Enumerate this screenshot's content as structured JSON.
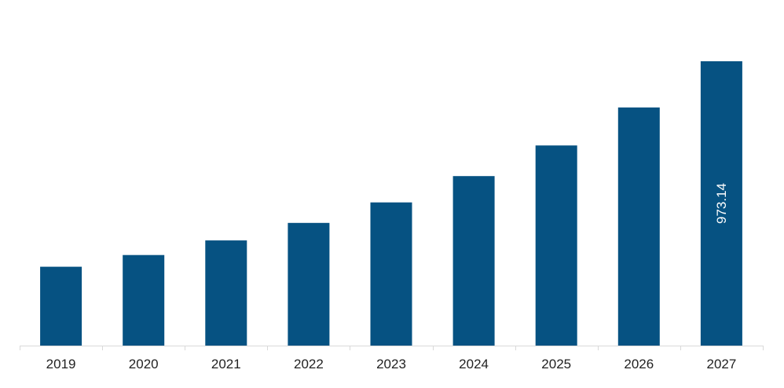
{
  "chart_data": {
    "type": "bar",
    "categories": [
      "2019",
      "2020",
      "2021",
      "2022",
      "2023",
      "2024",
      "2025",
      "2026",
      "2027"
    ],
    "values": [
      270,
      310,
      360,
      420,
      490,
      580,
      685,
      815,
      973.14
    ],
    "data_labels": [
      "",
      "",
      "",
      "",
      "",
      "",
      "",
      "",
      "973.14"
    ],
    "ylim": [
      0,
      1000
    ],
    "grid": false,
    "legend": "none",
    "bar_color": "#065282",
    "axis_color": "#d9d9d9",
    "title": "",
    "xlabel": "",
    "ylabel": ""
  }
}
